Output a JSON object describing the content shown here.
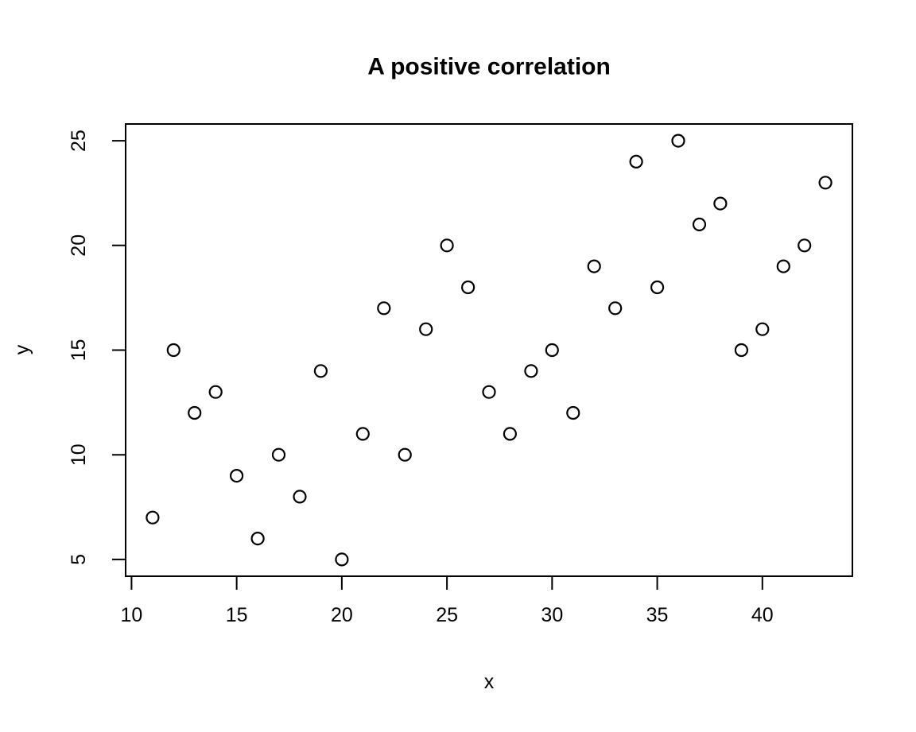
{
  "figure": {
    "background_color": "#ffffff",
    "foreground_color": "#000000"
  },
  "chart_data": {
    "type": "scatter",
    "title": "A positive correlation",
    "xlabel": "x",
    "ylabel": "y",
    "xlim": [
      9.72,
      44.28
    ],
    "ylim": [
      4.2,
      25.8
    ],
    "x_ticks": [
      10,
      15,
      20,
      25,
      30,
      35,
      40
    ],
    "y_ticks": [
      5,
      10,
      15,
      20,
      25
    ],
    "grid": false,
    "legend": null,
    "marker": "open-circle",
    "marker_color": "#000000",
    "x": [
      11,
      12,
      13,
      14,
      15,
      16,
      17,
      18,
      19,
      20,
      21,
      22,
      23,
      24,
      25,
      26,
      27,
      28,
      29,
      30,
      31,
      32,
      33,
      34,
      35,
      36,
      37,
      38,
      39,
      40,
      41,
      42,
      43
    ],
    "y": [
      7,
      15,
      12,
      13,
      9,
      6,
      10,
      8,
      14,
      5,
      11,
      17,
      10,
      16,
      20,
      18,
      13,
      11,
      14,
      15,
      12,
      19,
      17,
      24,
      18,
      25,
      21,
      22,
      15,
      16,
      19,
      20,
      23
    ]
  }
}
